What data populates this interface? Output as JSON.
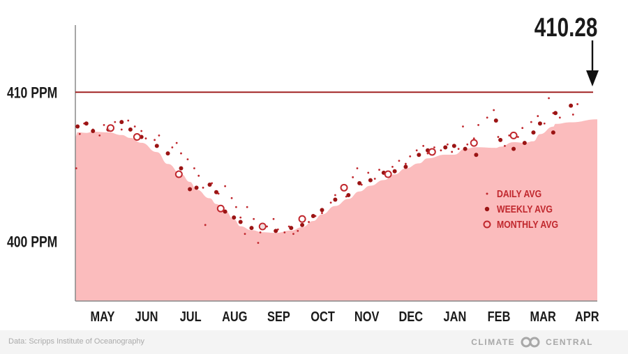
{
  "chart_data": {
    "type": "scatter",
    "callout": "410.28",
    "reference_line": {
      "value": 410,
      "label": "410 PPM"
    },
    "y_tick_labels": [
      {
        "value": 410,
        "label": "410 PPM"
      },
      {
        "value": 400,
        "label": "400 PPM"
      }
    ],
    "ylim": [
      396,
      414.5
    ],
    "x_tick_labels": [
      "MAY",
      "JUN",
      "JUL",
      "AUG",
      "SEP",
      "OCT",
      "NOV",
      "DEC",
      "JAN",
      "FEB",
      "MAR",
      "APR"
    ],
    "xlim": [
      -0.3,
      11.55
    ],
    "legend_position": "right",
    "series": [
      {
        "name": "DAILY AVG",
        "marker": "small-dot",
        "color": "#c0272d",
        "points": [
          [
            -0.28,
            404.9
          ],
          [
            -0.2,
            407.2
          ],
          [
            -0.1,
            407.9
          ],
          [
            0.1,
            407.5
          ],
          [
            0.25,
            407.1
          ],
          [
            0.35,
            407.8
          ],
          [
            0.6,
            408.0
          ],
          [
            0.75,
            407.5
          ],
          [
            0.9,
            408.1
          ],
          [
            1.05,
            407.7
          ],
          [
            1.2,
            407.4
          ],
          [
            1.3,
            406.9
          ],
          [
            1.5,
            406.8
          ],
          [
            1.6,
            407.1
          ],
          [
            1.9,
            406.3
          ],
          [
            2.0,
            406.6
          ],
          [
            2.1,
            405.9
          ],
          [
            2.25,
            405.5
          ],
          [
            2.4,
            404.9
          ],
          [
            2.5,
            404.4
          ],
          [
            2.6,
            403.6
          ],
          [
            2.65,
            401.1
          ],
          [
            2.8,
            403.9
          ],
          [
            2.95,
            403.2
          ],
          [
            3.1,
            403.7
          ],
          [
            3.25,
            402.9
          ],
          [
            3.35,
            402.3
          ],
          [
            3.45,
            401.6
          ],
          [
            3.55,
            400.5
          ],
          [
            3.6,
            402.3
          ],
          [
            3.75,
            401.5
          ],
          [
            3.85,
            399.9
          ],
          [
            3.9,
            400.6
          ],
          [
            4.05,
            401.0
          ],
          [
            4.2,
            401.5
          ],
          [
            4.3,
            400.8
          ],
          [
            4.45,
            400.6
          ],
          [
            4.55,
            401.0
          ],
          [
            4.65,
            400.5
          ],
          [
            4.75,
            400.7
          ],
          [
            4.85,
            401.1
          ],
          [
            5.0,
            401.3
          ],
          [
            5.15,
            401.7
          ],
          [
            5.3,
            401.9
          ],
          [
            5.5,
            402.6
          ],
          [
            5.6,
            403.1
          ],
          [
            5.75,
            403.5
          ],
          [
            5.85,
            403.0
          ],
          [
            6.0,
            404.3
          ],
          [
            6.1,
            404.9
          ],
          [
            6.2,
            403.8
          ],
          [
            6.35,
            404.6
          ],
          [
            6.5,
            404.2
          ],
          [
            6.6,
            404.8
          ],
          [
            6.75,
            404.5
          ],
          [
            6.9,
            405.0
          ],
          [
            7.05,
            405.4
          ],
          [
            7.2,
            405.2
          ],
          [
            7.3,
            405.7
          ],
          [
            7.45,
            406.1
          ],
          [
            7.6,
            406.4
          ],
          [
            7.7,
            405.9
          ],
          [
            7.85,
            406.3
          ],
          [
            8.0,
            406.1
          ],
          [
            8.15,
            406.5
          ],
          [
            8.25,
            406.0
          ],
          [
            8.4,
            406.2
          ],
          [
            8.5,
            407.7
          ],
          [
            8.6,
            406.5
          ],
          [
            8.75,
            406.9
          ],
          [
            8.85,
            407.8
          ],
          [
            9.05,
            408.3
          ],
          [
            9.2,
            408.8
          ],
          [
            9.3,
            407.0
          ],
          [
            9.45,
            406.4
          ],
          [
            9.55,
            407.1
          ],
          [
            9.65,
            406.2
          ],
          [
            9.75,
            407.0
          ],
          [
            9.85,
            407.6
          ],
          [
            10.05,
            408.0
          ],
          [
            10.2,
            408.4
          ],
          [
            10.35,
            407.9
          ],
          [
            10.45,
            409.6
          ],
          [
            10.55,
            408.6
          ],
          [
            10.7,
            408.3
          ],
          [
            11.0,
            408.5
          ],
          [
            11.1,
            409.2
          ]
        ]
      },
      {
        "name": "WEEKLY AVG",
        "marker": "filled-dot",
        "color": "#9b1414",
        "points": [
          [
            -0.25,
            407.7
          ],
          [
            -0.05,
            407.9
          ],
          [
            0.1,
            407.4
          ],
          [
            0.45,
            407.5
          ],
          [
            0.75,
            408.0
          ],
          [
            0.95,
            407.5
          ],
          [
            1.2,
            407.0
          ],
          [
            1.55,
            406.4
          ],
          [
            1.8,
            405.9
          ],
          [
            2.1,
            404.9
          ],
          [
            2.3,
            403.5
          ],
          [
            2.45,
            403.6
          ],
          [
            2.75,
            403.8
          ],
          [
            2.9,
            403.3
          ],
          [
            3.1,
            402.0
          ],
          [
            3.3,
            401.6
          ],
          [
            3.45,
            401.3
          ],
          [
            3.7,
            400.9
          ],
          [
            3.95,
            401.0
          ],
          [
            4.25,
            400.7
          ],
          [
            4.6,
            400.9
          ],
          [
            4.85,
            401.1
          ],
          [
            5.1,
            401.7
          ],
          [
            5.3,
            402.1
          ],
          [
            5.6,
            402.8
          ],
          [
            5.9,
            403.1
          ],
          [
            6.15,
            403.9
          ],
          [
            6.4,
            404.1
          ],
          [
            6.7,
            404.6
          ],
          [
            6.95,
            404.7
          ],
          [
            7.2,
            405.0
          ],
          [
            7.5,
            405.8
          ],
          [
            7.7,
            406.1
          ],
          [
            8.1,
            406.3
          ],
          [
            8.3,
            406.4
          ],
          [
            8.55,
            406.2
          ],
          [
            8.8,
            405.8
          ],
          [
            9.25,
            408.1
          ],
          [
            9.35,
            406.8
          ],
          [
            9.65,
            406.2
          ],
          [
            9.9,
            406.6
          ],
          [
            10.1,
            407.3
          ],
          [
            10.25,
            407.9
          ],
          [
            10.55,
            407.3
          ],
          [
            10.6,
            408.6
          ],
          [
            10.95,
            409.1
          ]
        ]
      },
      {
        "name": "MONTHLY AVG",
        "marker": "open-circle",
        "color": "#c0272d",
        "points": [
          [
            0.5,
            407.6
          ],
          [
            1.1,
            407.0
          ],
          [
            2.05,
            404.5
          ],
          [
            3.0,
            402.2
          ],
          [
            3.95,
            401.0
          ],
          [
            4.85,
            401.5
          ],
          [
            5.8,
            403.6
          ],
          [
            6.8,
            404.5
          ],
          [
            7.8,
            406.0
          ],
          [
            8.75,
            406.6
          ],
          [
            9.65,
            407.1
          ]
        ]
      }
    ]
  },
  "footer": {
    "source": "Data: Scripps Institute of Oceanography",
    "brand_left": "CLIMATE",
    "brand_right": "CENTRAL",
    "logo_icon": "linked-rings-icon"
  }
}
